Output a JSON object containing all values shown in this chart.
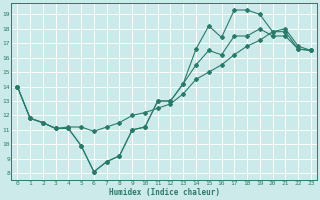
{
  "xlabel": "Humidex (Indice chaleur)",
  "bg_color": "#cceaea",
  "grid_color": "#ffffff",
  "line_color": "#2a7a6a",
  "xlim": [
    -0.5,
    23.5
  ],
  "ylim": [
    7.5,
    19.8
  ],
  "yticks": [
    8,
    9,
    10,
    11,
    12,
    13,
    14,
    15,
    16,
    17,
    18,
    19
  ],
  "xticks": [
    0,
    1,
    2,
    3,
    4,
    5,
    6,
    7,
    8,
    9,
    10,
    11,
    12,
    13,
    14,
    15,
    16,
    17,
    18,
    19,
    20,
    21,
    22,
    23
  ],
  "curve1_x": [
    0,
    1,
    2,
    3,
    4,
    5,
    6,
    7,
    8,
    9,
    10,
    11,
    12,
    13,
    14,
    15,
    16,
    17,
    18,
    19,
    20,
    21,
    22,
    23
  ],
  "curve1_y": [
    14.0,
    11.8,
    11.5,
    11.1,
    11.1,
    9.9,
    8.1,
    8.8,
    9.2,
    11.0,
    11.2,
    13.0,
    13.0,
    14.2,
    16.6,
    18.2,
    17.4,
    19.3,
    19.3,
    19.0,
    17.8,
    17.8,
    16.6,
    16.5
  ],
  "curve2_x": [
    0,
    1,
    2,
    3,
    4,
    5,
    6,
    7,
    8,
    9,
    10,
    11,
    12,
    13,
    14,
    15,
    16,
    17,
    18,
    19,
    20,
    21,
    22,
    23
  ],
  "curve2_y": [
    14.0,
    11.8,
    11.5,
    11.1,
    11.1,
    9.9,
    8.1,
    8.8,
    9.2,
    11.0,
    11.2,
    13.0,
    13.0,
    14.2,
    15.5,
    16.5,
    16.2,
    17.5,
    17.5,
    18.0,
    17.5,
    17.5,
    16.6,
    16.5
  ],
  "curve3_x": [
    0,
    1,
    2,
    3,
    4,
    5,
    6,
    7,
    8,
    9,
    10,
    11,
    12,
    13,
    14,
    15,
    16,
    17,
    18,
    19,
    20,
    21,
    22,
    23
  ],
  "curve3_y": [
    14.0,
    11.8,
    11.5,
    11.1,
    11.2,
    11.2,
    10.9,
    11.2,
    11.5,
    12.0,
    12.2,
    12.5,
    12.8,
    13.5,
    14.5,
    15.0,
    15.5,
    16.2,
    16.8,
    17.2,
    17.8,
    18.0,
    16.8,
    16.5
  ]
}
